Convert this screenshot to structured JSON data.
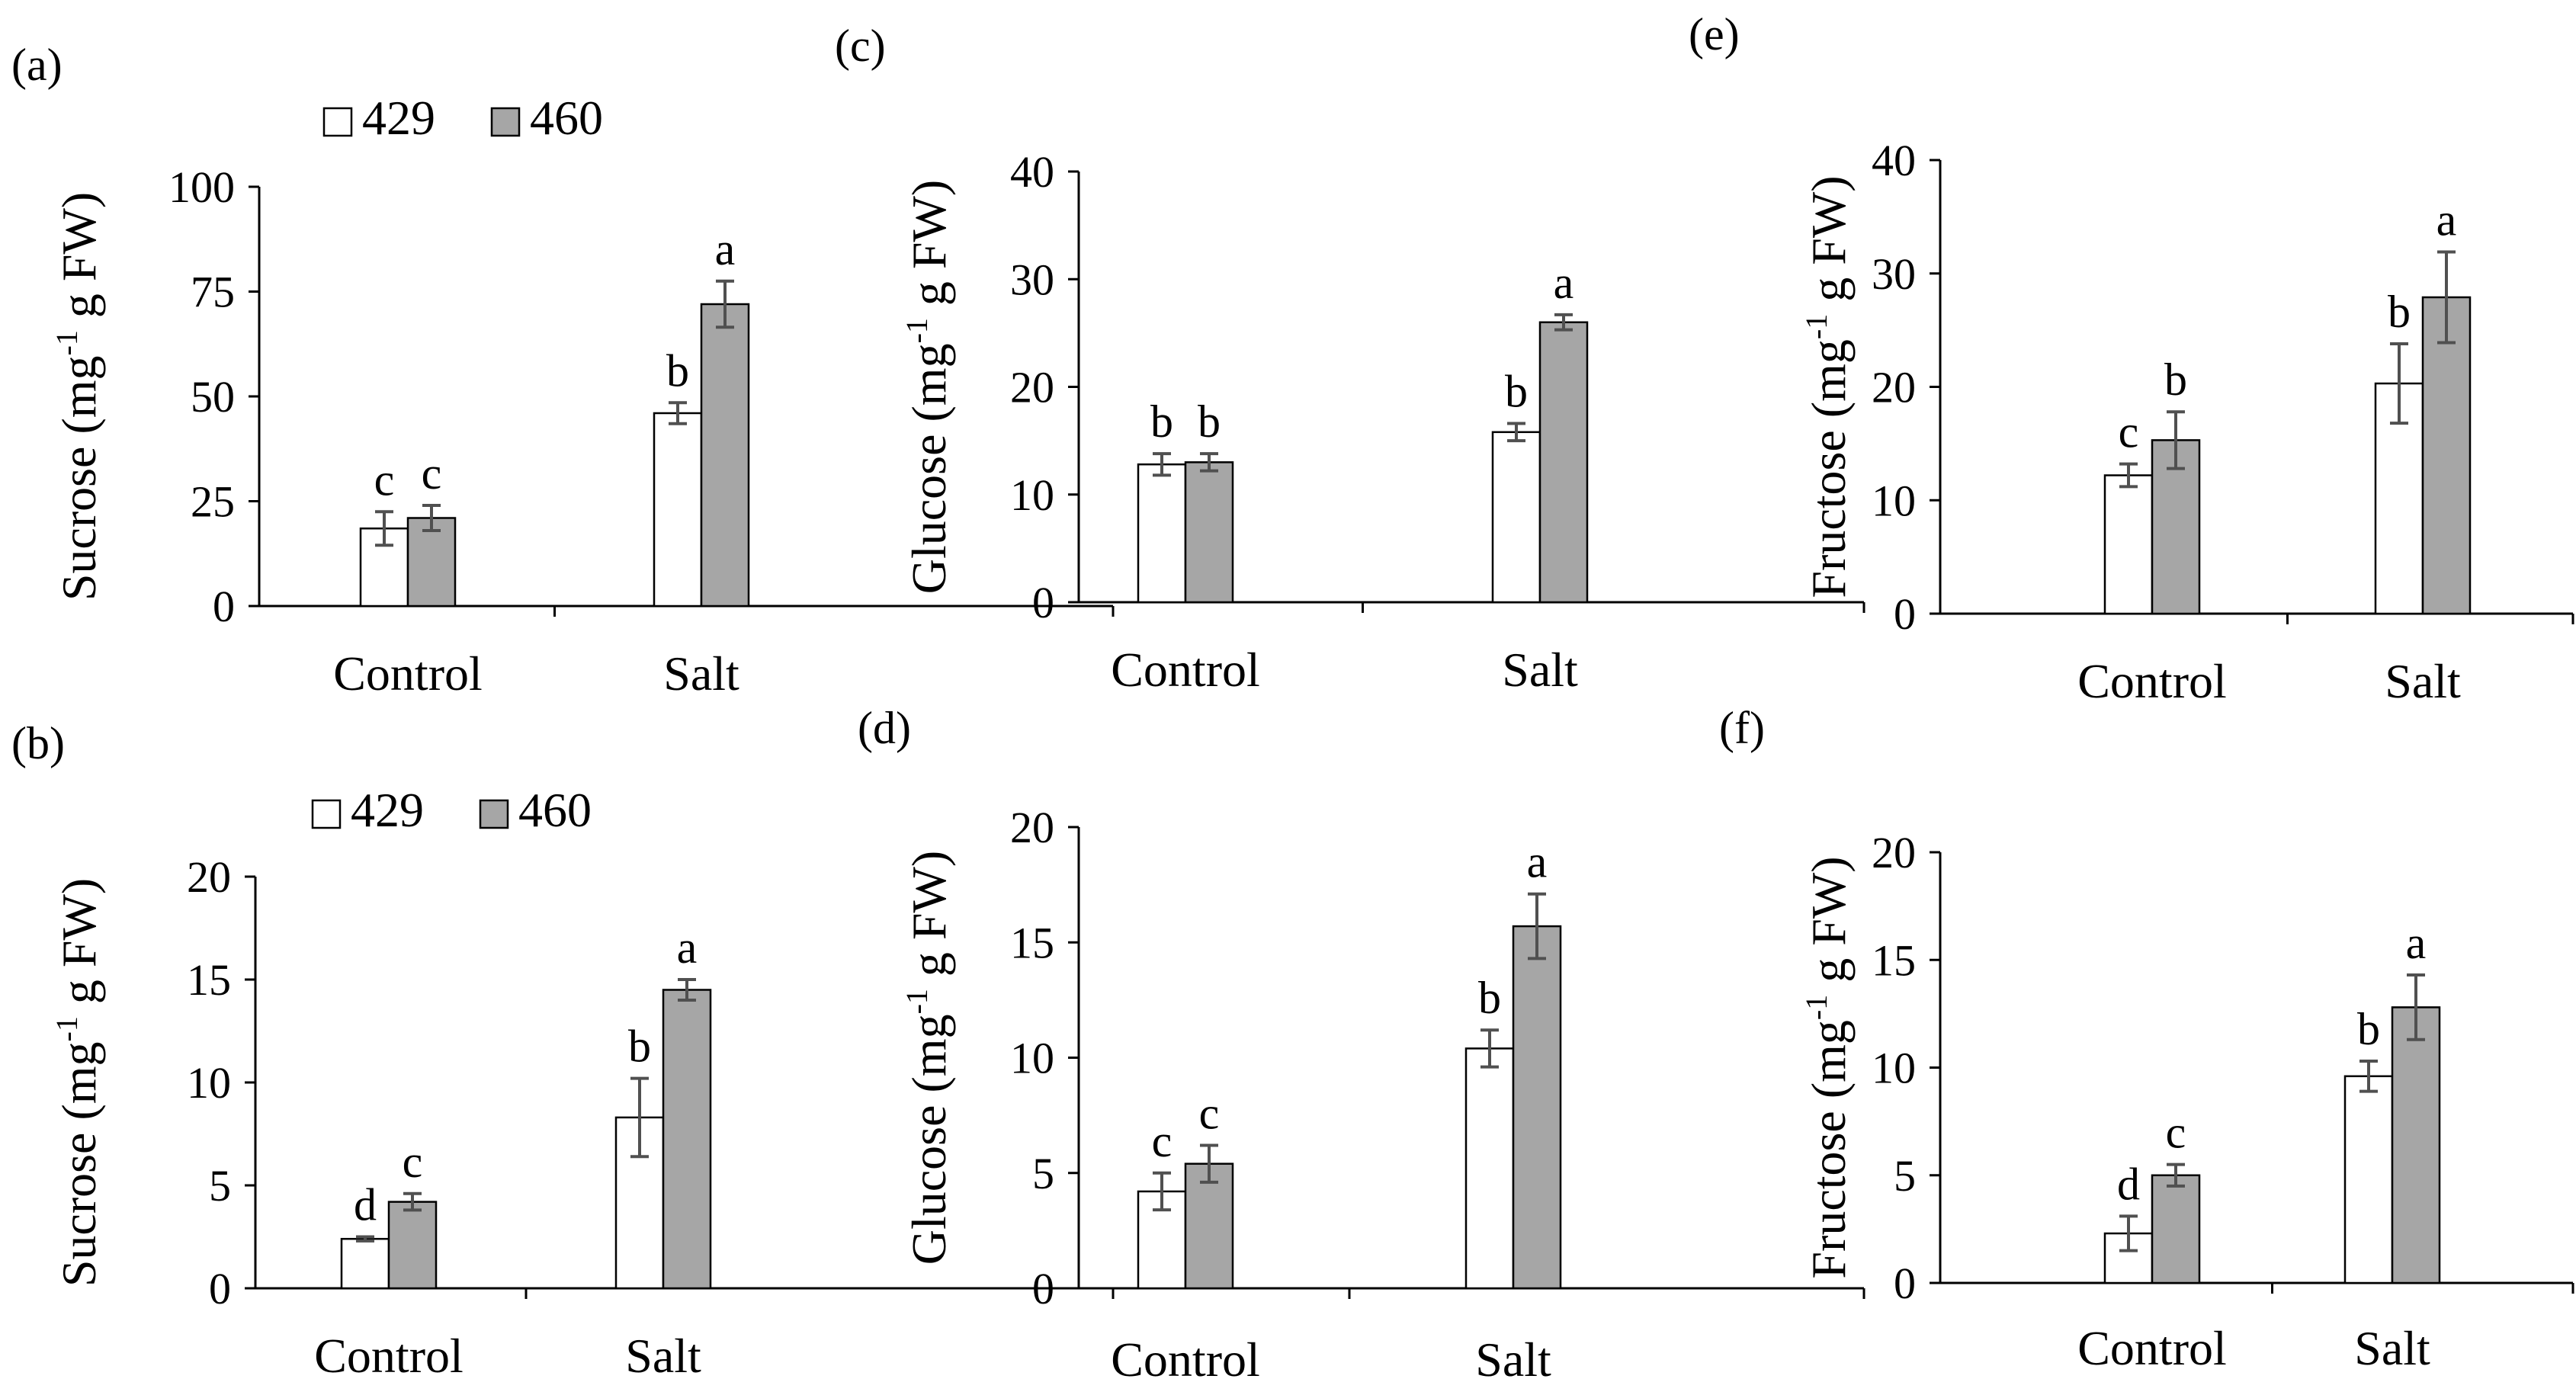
{
  "colors": {
    "s429": "#ffffff",
    "s460": "#a6a6a6",
    "axis": "#000000",
    "error": "#505050"
  },
  "legend": {
    "items": [
      "429",
      "460"
    ]
  },
  "chart_data": [
    {
      "panel": "(a)",
      "type": "bar",
      "title": "",
      "xlabel": "",
      "ylabel": {
        "main": "Sucrose (mg",
        "sup": "-1",
        "rest": " g FW)"
      },
      "categories": [
        "Control",
        "Salt"
      ],
      "ylim": [
        0,
        100
      ],
      "yticks": [
        "0",
        "25",
        "50",
        "75",
        "100"
      ],
      "series": [
        {
          "name": "429",
          "values": [
            18.5,
            46.0
          ],
          "errors": [
            4.0,
            2.5
          ],
          "letters": [
            "c",
            "b"
          ]
        },
        {
          "name": "460",
          "values": [
            21.0,
            72.0
          ],
          "errors": [
            3.0,
            5.5
          ],
          "letters": [
            "c",
            "a"
          ]
        }
      ]
    },
    {
      "panel": "(b)",
      "type": "bar",
      "title": "",
      "xlabel": "",
      "ylabel": {
        "main": "Sucrose (mg",
        "sup": "-1",
        "rest": " g FW)"
      },
      "categories": [
        "Control",
        "Salt"
      ],
      "ylim": [
        0,
        20
      ],
      "yticks": [
        "0",
        "5",
        "10",
        "15",
        "20"
      ],
      "series": [
        {
          "name": "429",
          "values": [
            2.4,
            8.3
          ],
          "errors": [
            0.1,
            1.9
          ],
          "letters": [
            "d",
            "b"
          ]
        },
        {
          "name": "460",
          "values": [
            4.2,
            14.5
          ],
          "errors": [
            0.4,
            0.5
          ],
          "letters": [
            "c",
            "a"
          ]
        }
      ]
    },
    {
      "panel": "(c)",
      "type": "bar",
      "title": "",
      "xlabel": "",
      "ylabel": {
        "main": "Glucose  (mg",
        "sup": "-1",
        "rest": " g FW)"
      },
      "categories": [
        "Control",
        "Salt"
      ],
      "ylim": [
        0,
        40
      ],
      "yticks": [
        "0",
        "10",
        "20",
        "30",
        "40"
      ],
      "series": [
        {
          "name": "429",
          "values": [
            12.8,
            15.8
          ],
          "errors": [
            1.0,
            0.8
          ],
          "letters": [
            "b",
            "b"
          ]
        },
        {
          "name": "460",
          "values": [
            13.0,
            26.0
          ],
          "errors": [
            0.8,
            0.7
          ],
          "letters": [
            "b",
            "a"
          ]
        }
      ]
    },
    {
      "panel": "(d)",
      "type": "bar",
      "title": "",
      "xlabel": "",
      "ylabel": {
        "main": "Glucose  (mg",
        "sup": "-1",
        "rest": " g FW)"
      },
      "categories": [
        "Control",
        "Salt"
      ],
      "ylim": [
        0,
        20
      ],
      "yticks": [
        "0",
        "5",
        "10",
        "15",
        "20"
      ],
      "series": [
        {
          "name": "429",
          "values": [
            4.2,
            10.4
          ],
          "errors": [
            0.8,
            0.8
          ],
          "letters": [
            "c",
            "b"
          ]
        },
        {
          "name": "460",
          "values": [
            5.4,
            15.7
          ],
          "errors": [
            0.8,
            1.4
          ],
          "letters": [
            "c",
            "a"
          ]
        }
      ]
    },
    {
      "panel": "(e)",
      "type": "bar",
      "title": "",
      "xlabel": "",
      "ylabel": {
        "main": "Fructose  (mg",
        "sup": "-1",
        "rest": " g FW)"
      },
      "categories": [
        "Control",
        "Salt"
      ],
      "ylim": [
        0,
        40
      ],
      "yticks": [
        "0",
        "10",
        "20",
        "30",
        "40"
      ],
      "series": [
        {
          "name": "429",
          "values": [
            12.2,
            20.3
          ],
          "errors": [
            1.0,
            3.5
          ],
          "letters": [
            "c",
            "b"
          ]
        },
        {
          "name": "460",
          "values": [
            15.3,
            27.9
          ],
          "errors": [
            2.5,
            4.0
          ],
          "letters": [
            "b",
            "a"
          ]
        }
      ]
    },
    {
      "panel": "(f)",
      "type": "bar",
      "title": "",
      "xlabel": "",
      "ylabel": {
        "main": "Fructose  (mg",
        "sup": "-1",
        "rest": " g FW)"
      },
      "categories": [
        "Control",
        "Salt"
      ],
      "ylim": [
        0,
        20
      ],
      "yticks": [
        "0",
        "5",
        "10",
        "15",
        "20"
      ],
      "series": [
        {
          "name": "429",
          "values": [
            2.3,
            9.6
          ],
          "errors": [
            0.8,
            0.7
          ],
          "letters": [
            "d",
            "b"
          ]
        },
        {
          "name": "460",
          "values": [
            5.0,
            12.8
          ],
          "errors": [
            0.5,
            1.5
          ],
          "letters": [
            "c",
            "a"
          ]
        }
      ]
    }
  ]
}
